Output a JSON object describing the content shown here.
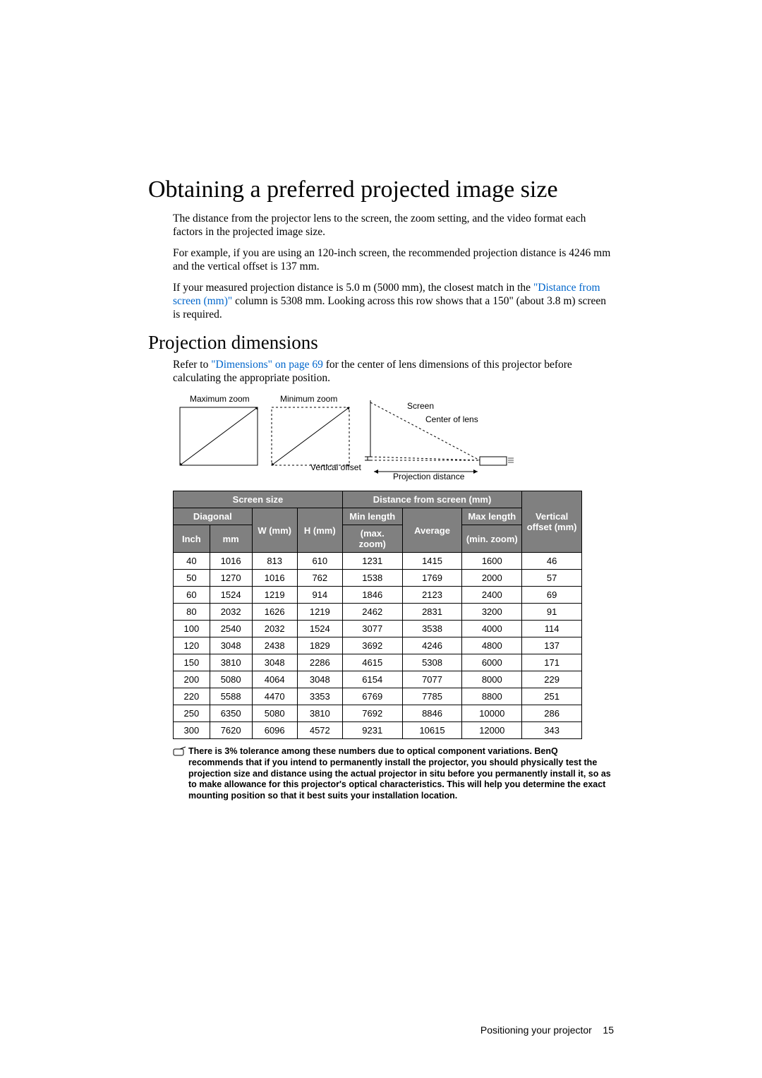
{
  "title": "Obtaining a preferred projected image size",
  "paras": {
    "p1": "The distance from the projector lens to the screen, the zoom setting, and the video format each factors in the projected image size.",
    "p2": "For example, if you are using an 120-inch screen, the recommended projection distance is 4246 mm and the vertical offset is 137 mm.",
    "p3a": "If your measured projection distance is 5.0 m (5000 mm), the closest match in the ",
    "p3link": "\"Distance from screen (mm)\"",
    "p3b": " column is 5308 mm. Looking across this row shows that a 150\" (about 3.8 m) screen is required."
  },
  "sub_heading": "Projection dimensions",
  "sub_p_a": "Refer to ",
  "sub_link": "\"Dimensions\" on page 69",
  "sub_p_b": " for the center of lens dimensions of this projector before calculating the appropriate position.",
  "diagram": {
    "max_zoom": "Maximum zoom",
    "min_zoom": "Minimum zoom",
    "vertical_offset": "Vertical offset",
    "screen": "Screen",
    "center_of_lens": "Center of lens",
    "projection_distance": "Projection distance"
  },
  "table": {
    "header": {
      "screen_size": "Screen size",
      "distance": "Distance from screen (mm)",
      "vertical_offset": "Vertical offset (mm)",
      "diagonal": "Diagonal",
      "w_mm": "W (mm)",
      "h_mm": "H (mm)",
      "min_length": "Min length",
      "max_zoom": "(max. zoom)",
      "average": "Average",
      "max_length": "Max length",
      "min_zoom": "(min. zoom)",
      "inch": "Inch",
      "mm": "mm"
    },
    "col_widths": [
      "50",
      "58",
      "62",
      "62",
      "82",
      "82",
      "82",
      "82"
    ],
    "header_bg": "#808080",
    "header_color": "#ffffff",
    "border_color": "#000000",
    "rows": [
      [
        "40",
        "1016",
        "813",
        "610",
        "1231",
        "1415",
        "1600",
        "46"
      ],
      [
        "50",
        "1270",
        "1016",
        "762",
        "1538",
        "1769",
        "2000",
        "57"
      ],
      [
        "60",
        "1524",
        "1219",
        "914",
        "1846",
        "2123",
        "2400",
        "69"
      ],
      [
        "80",
        "2032",
        "1626",
        "1219",
        "2462",
        "2831",
        "3200",
        "91"
      ],
      [
        "100",
        "2540",
        "2032",
        "1524",
        "3077",
        "3538",
        "4000",
        "114"
      ],
      [
        "120",
        "3048",
        "2438",
        "1829",
        "3692",
        "4246",
        "4800",
        "137"
      ],
      [
        "150",
        "3810",
        "3048",
        "2286",
        "4615",
        "5308",
        "6000",
        "171"
      ],
      [
        "200",
        "5080",
        "4064",
        "3048",
        "6154",
        "7077",
        "8000",
        "229"
      ],
      [
        "220",
        "5588",
        "4470",
        "3353",
        "6769",
        "7785",
        "8800",
        "251"
      ],
      [
        "250",
        "6350",
        "5080",
        "3810",
        "7692",
        "8846",
        "10000",
        "286"
      ],
      [
        "300",
        "7620",
        "6096",
        "4572",
        "9231",
        "10615",
        "12000",
        "343"
      ]
    ]
  },
  "footnote": "There is 3% tolerance among these numbers due to optical component variations. BenQ recommends that if you intend to permanently install the projector, you should physically test the projection size and distance using the actual projector in situ before you permanently install it, so as to make allowance for this projector's optical characteristics. This will help you determine the exact mounting position so that it best suits your installation location.",
  "footer_text": "Positioning your projector",
  "footer_page": "15"
}
